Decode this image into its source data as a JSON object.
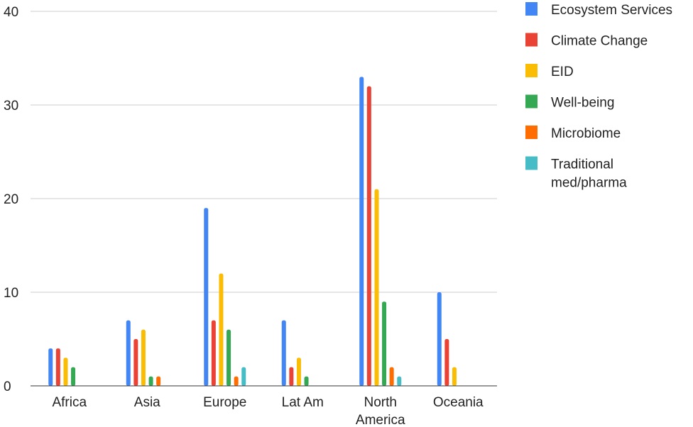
{
  "chart_data": {
    "type": "bar",
    "categories": [
      "Africa",
      "Asia",
      "Europe",
      "Lat Am",
      "North America",
      "Oceania"
    ],
    "series": [
      {
        "name": "Ecosystem Services",
        "color": "#4285F4",
        "values": [
          4,
          7,
          19,
          7,
          33,
          10
        ]
      },
      {
        "name": "Climate Change",
        "color": "#EA4335",
        "values": [
          4,
          5,
          7,
          2,
          32,
          5
        ]
      },
      {
        "name": "EID",
        "color": "#FBBC04",
        "values": [
          3,
          6,
          12,
          3,
          21,
          2
        ]
      },
      {
        "name": "Well-being",
        "color": "#34A853",
        "values": [
          2,
          1,
          6,
          1,
          9,
          0
        ]
      },
      {
        "name": "Microbiome",
        "color": "#FF6D01",
        "values": [
          0,
          1,
          1,
          0,
          2,
          0
        ]
      },
      {
        "name": "Traditional med/pharma",
        "color": "#46BDC6",
        "values": [
          0,
          0,
          2,
          0,
          1,
          0
        ]
      }
    ],
    "ylim": [
      0,
      40
    ],
    "yticks": [
      0,
      10,
      20,
      30,
      40
    ],
    "grid": true,
    "legend": "right",
    "title": "",
    "xlabel": "",
    "ylabel": ""
  }
}
